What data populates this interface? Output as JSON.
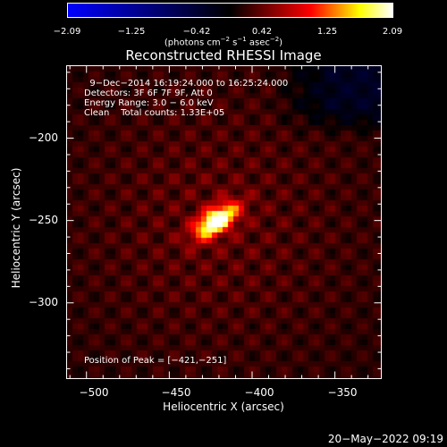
{
  "colors": {
    "colormap": [
      "#0000ff",
      "#000000",
      "#ff0000",
      "#ffff00",
      "#ffffff"
    ],
    "frame": "#ffffff",
    "background": "#000000"
  },
  "colorbar": {
    "min": -2.09,
    "max": 2.09,
    "tick_labels": [
      "−2.09",
      "−1.25",
      "−0.42",
      "0.42",
      "1.25",
      "2.09"
    ],
    "tick_values": [
      -2.09,
      -1.25,
      -0.42,
      0.42,
      1.25,
      2.09
    ]
  },
  "chart_data": {
    "type": "heatmap",
    "title": "Reconstructed RHESSI Image",
    "units_label_parts": [
      "(photons cm",
      "−2",
      " s",
      "−1",
      " asec",
      "−2",
      ")"
    ],
    "xlabel": "Heliocentric X (arcsec)",
    "ylabel": "Heliocentric Y (arcsec)",
    "xlim": [
      -512,
      -322
    ],
    "ylim": [
      -346,
      -156
    ],
    "x_ticks": [
      -500,
      -450,
      -400,
      -350
    ],
    "x_tick_labels": [
      "−500",
      "−450",
      "−400",
      "−350"
    ],
    "y_ticks": [
      -200,
      -250,
      -300
    ],
    "y_tick_labels": [
      "−200",
      "−250",
      "−300"
    ],
    "peak": {
      "x": -421,
      "y": -251,
      "label": "Position of Peak = [−421,−251]"
    },
    "source": {
      "center_x": -422,
      "center_y": -250,
      "sigma_major": 10,
      "sigma_minor": 5,
      "angle_deg": 35,
      "peak_value": 2.09,
      "diffuse_level": 0.75
    },
    "annotations": [
      "  9−Dec−2014 16:19:24.000 to 16:25:24.000",
      "Detectors: 3F 6F 7F 9F, Att 0",
      "Energy Range: 3.0 − 6.0 keV",
      "Clean    Total counts: 1.33E+05"
    ]
  },
  "footer": {
    "timestamp": "20−May−2022 09:19"
  }
}
